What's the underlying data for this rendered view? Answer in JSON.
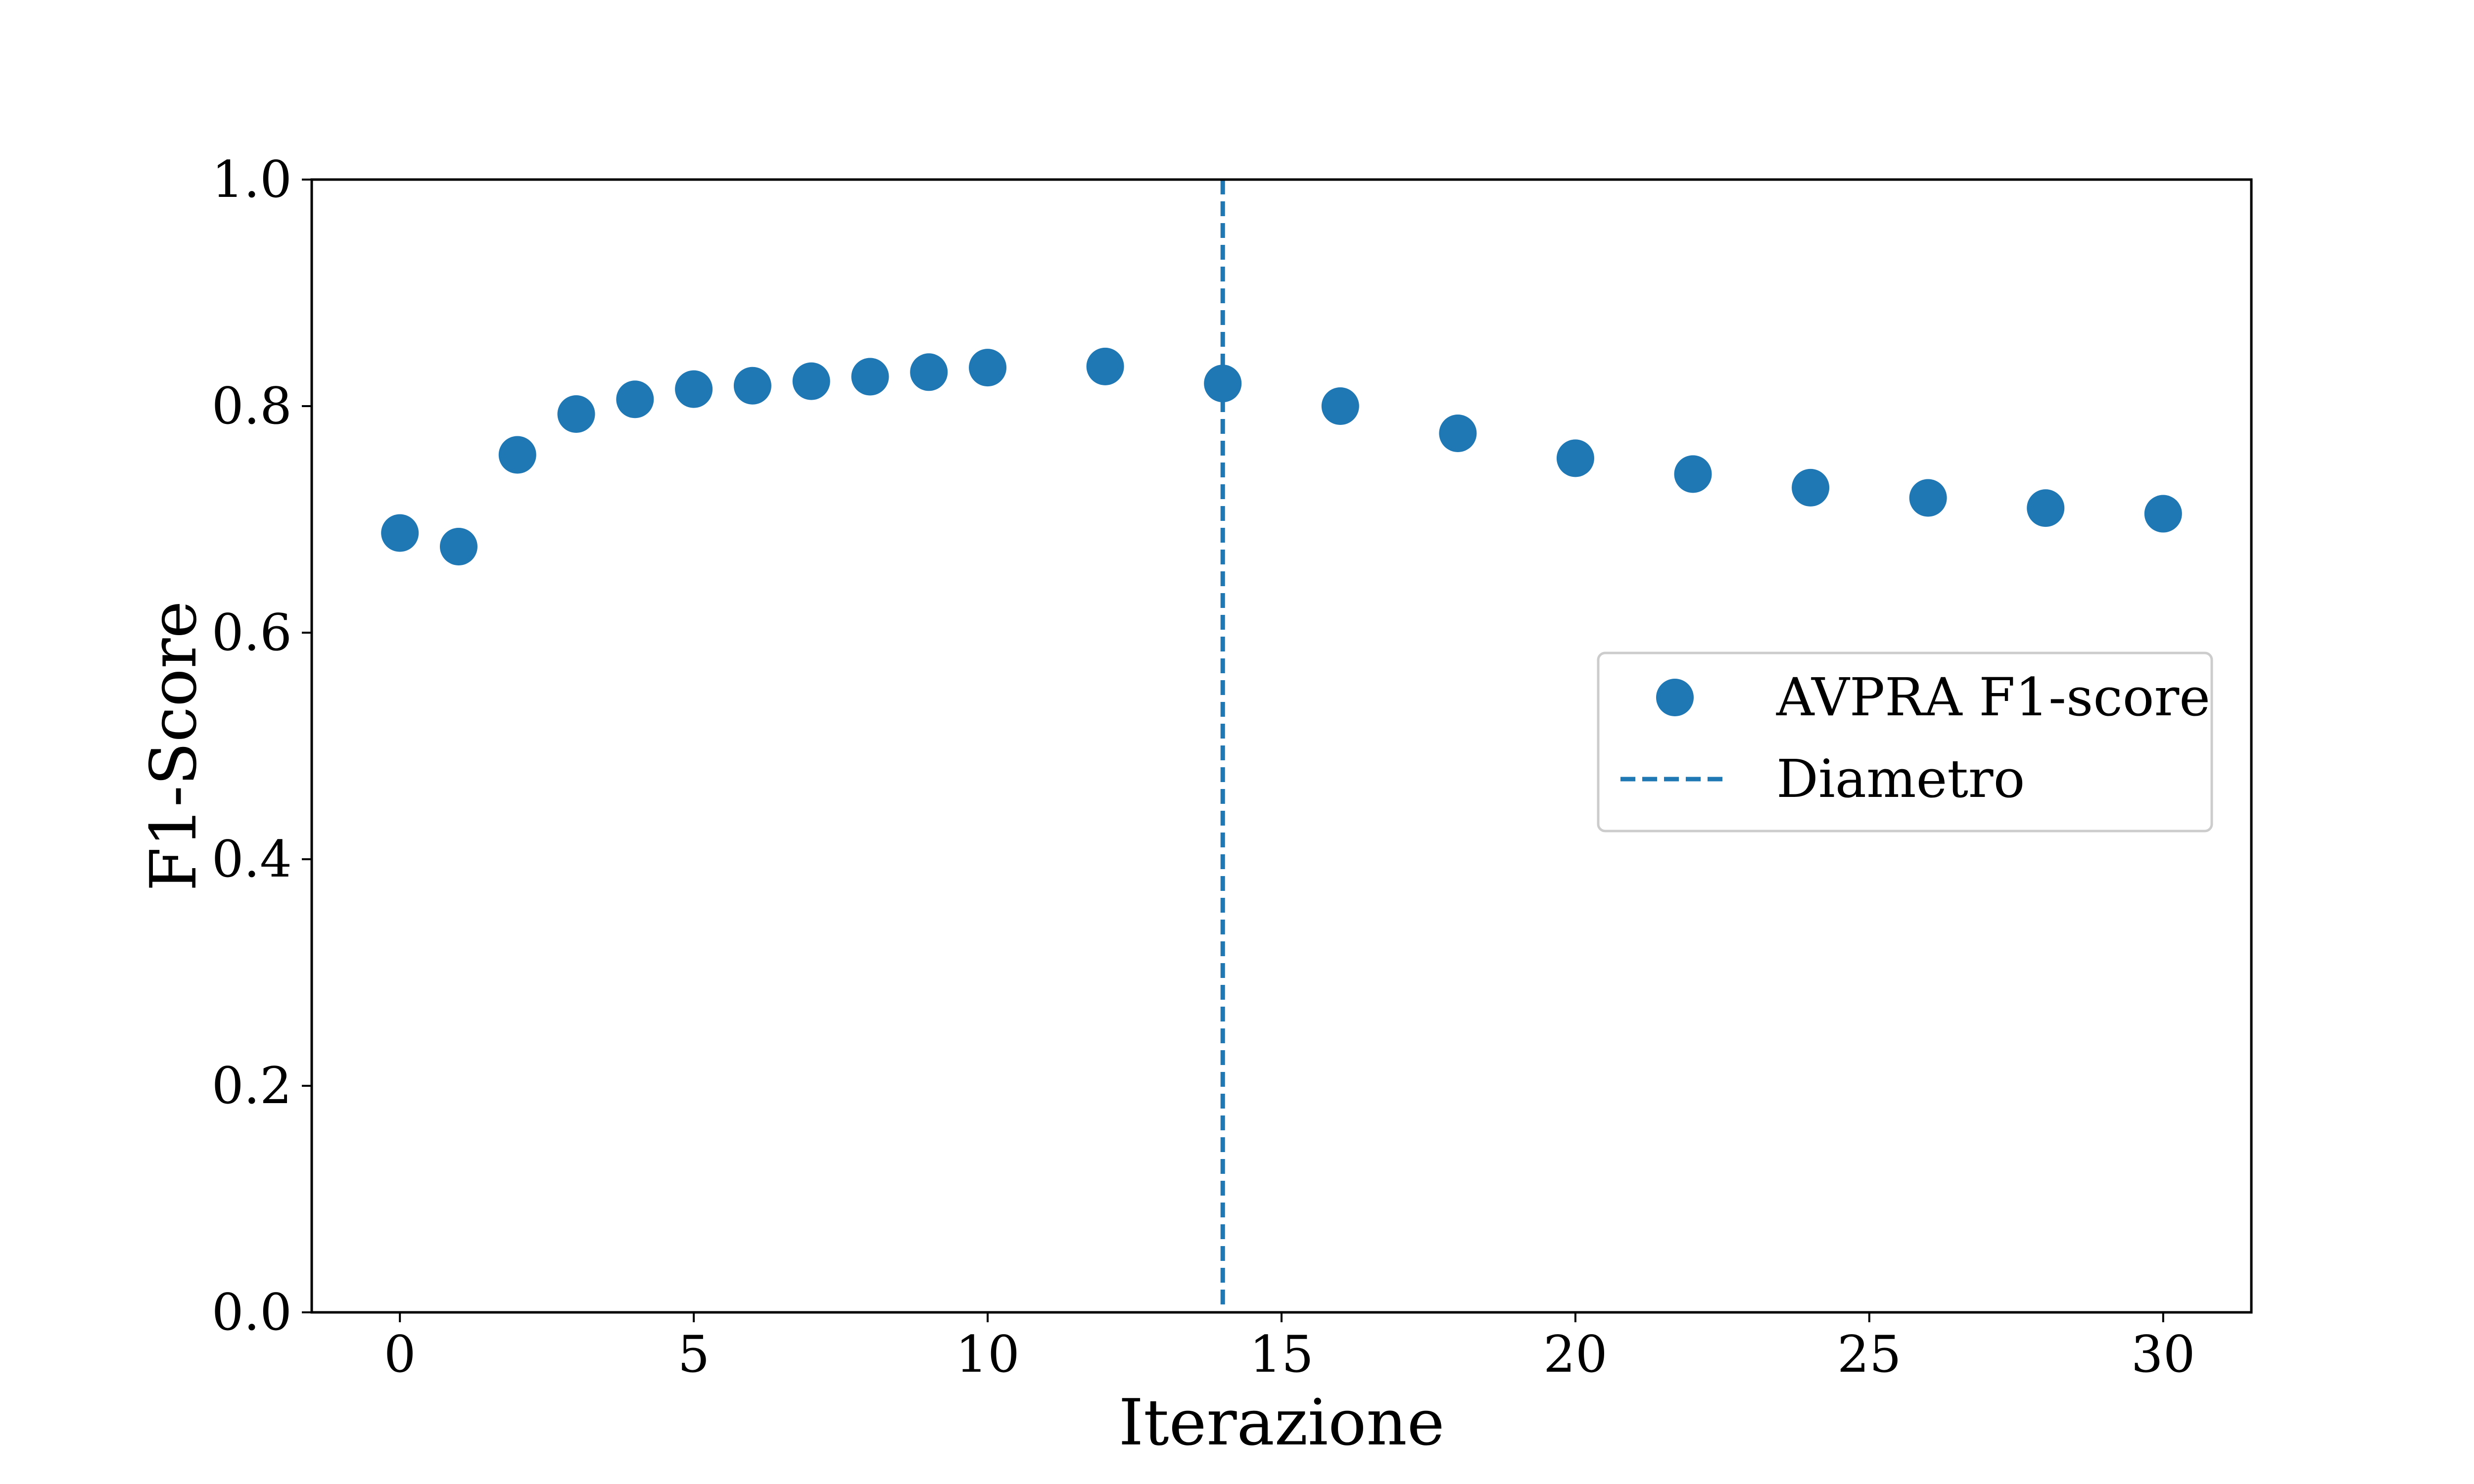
{
  "chart_data": {
    "type": "scatter",
    "xlabel": "Iterazione",
    "ylabel": "F1-Score",
    "xlim": [
      -1.5,
      31.5
    ],
    "ylim": [
      0.0,
      1.0
    ],
    "xticks": [
      0,
      5,
      10,
      15,
      20,
      25,
      30
    ],
    "xtick_labels": [
      "0",
      "5",
      "10",
      "15",
      "20",
      "25",
      "30"
    ],
    "yticks": [
      0.0,
      0.2,
      0.4,
      0.6,
      0.8,
      1.0
    ],
    "ytick_labels": [
      "0.0",
      "0.2",
      "0.4",
      "0.6",
      "0.8",
      "1.0"
    ],
    "grid": false,
    "legend_position": "center-right",
    "series": [
      {
        "name": "AVPRA F1-score",
        "kind": "scatter",
        "color": "#1f77b4",
        "x": [
          0,
          1,
          2,
          3,
          4,
          5,
          6,
          7,
          8,
          9,
          10,
          12,
          14,
          16,
          18,
          20,
          22,
          24,
          26,
          28,
          30
        ],
        "y": [
          0.688,
          0.676,
          0.757,
          0.793,
          0.806,
          0.815,
          0.818,
          0.822,
          0.826,
          0.83,
          0.834,
          0.835,
          0.82,
          0.8,
          0.776,
          0.754,
          0.74,
          0.728,
          0.719,
          0.71,
          0.705
        ]
      },
      {
        "name": "Diametro",
        "kind": "vline",
        "color": "#1f77b4",
        "linestyle": "dashed",
        "x": 14
      }
    ]
  }
}
